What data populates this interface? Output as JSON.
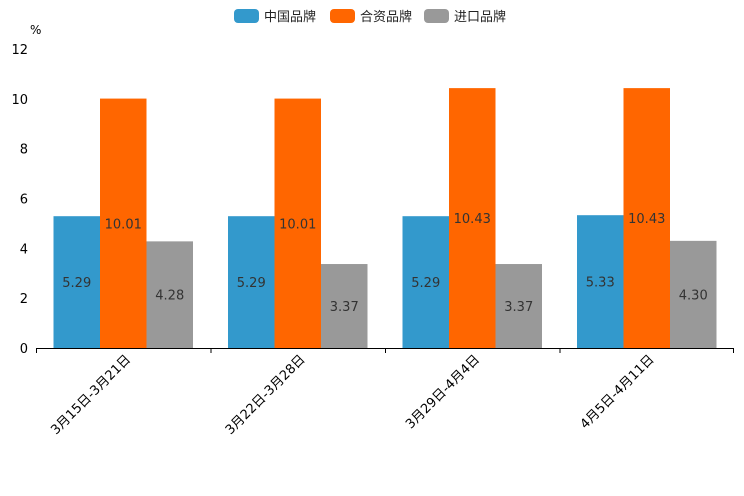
{
  "chart_data": {
    "type": "bar",
    "title": "",
    "xlabel": "",
    "ylabel": "%",
    "ylim": [
      0,
      12
    ],
    "yticks": [
      0,
      2,
      4,
      6,
      8,
      10,
      12
    ],
    "grid": false,
    "legend_position": "top-center",
    "categories": [
      "3月15日-3月21日",
      "3月22日-3月28日",
      "3月29日-4月4日",
      "4月5日-4月11日"
    ],
    "series": [
      {
        "name": "中国品牌",
        "color": "#3399cc",
        "values": [
          5.29,
          5.29,
          5.29,
          5.33
        ],
        "labels": [
          "5.29",
          "5.29",
          "5.29",
          "5.33"
        ]
      },
      {
        "name": "合资品牌",
        "color": "#ff6600",
        "values": [
          10.01,
          10.01,
          10.43,
          10.43
        ],
        "labels": [
          "10.01",
          "10.01",
          "10.43",
          "10.43"
        ]
      },
      {
        "name": "进口品牌",
        "color": "#999999",
        "values": [
          4.28,
          3.37,
          3.37,
          4.3
        ],
        "labels": [
          "4.28",
          "3.37",
          "3.37",
          "4.30"
        ]
      }
    ]
  }
}
